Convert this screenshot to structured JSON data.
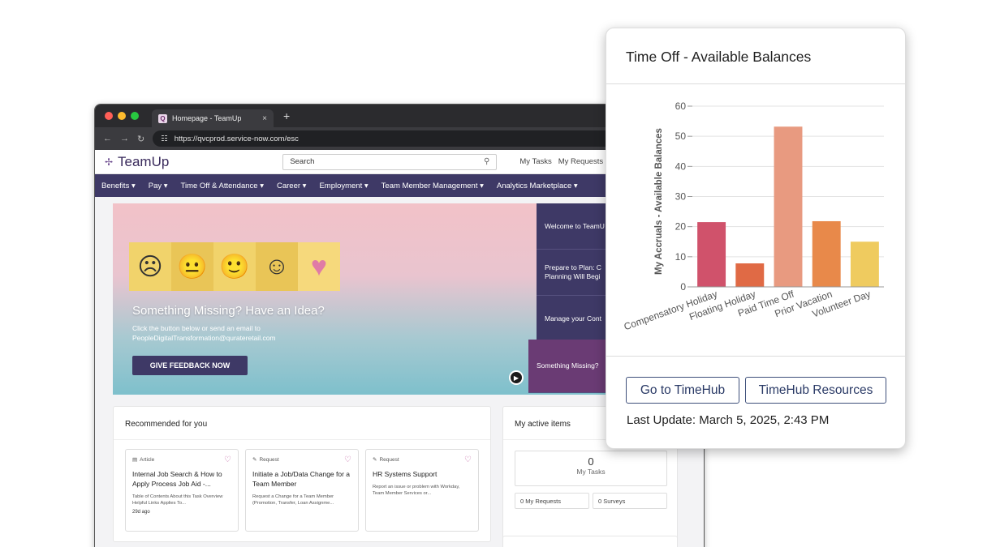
{
  "browser": {
    "tab_title": "Homepage - TeamUp",
    "tab_favicon": "Q",
    "tab_close": "×",
    "new_tab": "+",
    "url": "https://qvcprod.service-now.com/esc",
    "traffic_light_colors": [
      "#ff5f57",
      "#febc2e",
      "#28c840"
    ]
  },
  "site": {
    "logo_text": "TeamUp",
    "search_placeholder": "Search",
    "header_links": [
      "My Tasks",
      "My Requests"
    ],
    "nav": [
      "Benefits ▾",
      "Pay ▾",
      "Time Off & Attendance ▾",
      "Career ▾",
      "Employment ▾",
      "Team Member Management ▾",
      "Analytics Marketplace ▾"
    ]
  },
  "hero": {
    "title": "Something Missing? Have an Idea?",
    "subtitle_line1": "Click the button below or send an email to",
    "subtitle_line2": "PeopleDigitalTransformation@qurateretail.com",
    "button": "GIVE FEEDBACK NOW"
  },
  "side_menu": [
    "Welcome to TeamU",
    "Prepare to Plan: C Planning Will Begi",
    "Manage your Cont",
    "Something Missing?"
  ],
  "recommended": {
    "title": "Recommended for you",
    "tiles": [
      {
        "type": "Article",
        "title": "Internal Job Search & How to Apply Process Job Aid -...",
        "desc": "Table of Contents About this Task Overview Helpful Links Applies To...",
        "age": "29d ago"
      },
      {
        "type": "Request",
        "title": "Initiate a Job/Data Change for a Team Member",
        "desc": "Request a Change for a Team Member (Promotion, Transfer, Loan Assignme...",
        "age": ""
      },
      {
        "type": "Request",
        "title": "HR Systems Support",
        "desc": "Report an issue or problem with Workday, Team Member Services or...",
        "age": ""
      }
    ]
  },
  "active_items": {
    "title": "My active items",
    "count": "0",
    "count_label": "My Tasks",
    "requests": "0 My Requests",
    "surveys": "0 Surveys"
  },
  "popover": {
    "title": "Time Off - Available Balances",
    "btn_timehub": "Go to TimeHub",
    "btn_resources": "TimeHub Resources",
    "last_update": "Last Update: March 5, 2025, 2:43 PM"
  },
  "chart_data": {
    "type": "bar",
    "title": "",
    "xlabel": "",
    "ylabel": "My Accruals - Available Balances",
    "categories": [
      "Compensatory Holiday",
      "Floating Holiday",
      "Paid Time Off",
      "Prior Vacation",
      "Volunteer Day"
    ],
    "values": [
      21.5,
      7.8,
      53.2,
      21.8,
      15.0
    ],
    "colors": [
      "#d0526b",
      "#e06a45",
      "#e89a80",
      "#e8894a",
      "#efcb5f"
    ],
    "ylim": [
      0,
      60
    ],
    "yticks": [
      0,
      10,
      20,
      30,
      40,
      50,
      60
    ],
    "grid": true
  }
}
